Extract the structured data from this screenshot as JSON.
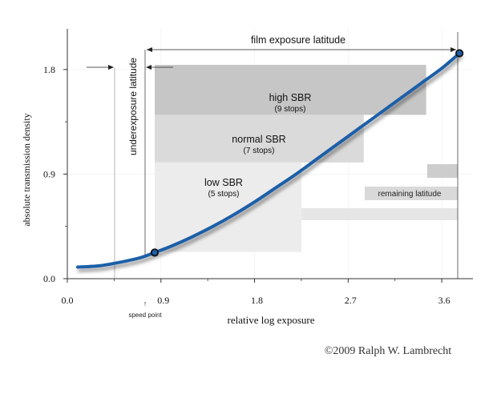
{
  "chart_data": {
    "type": "line",
    "xlabel": "relative log exposure",
    "ylabel": "absolute transmission density",
    "xlim": [
      0.0,
      3.9
    ],
    "ylim": [
      0.0,
      2.15
    ],
    "x_ticks": [
      "0.0",
      "0.9",
      "1.8",
      "2.7",
      "3.6"
    ],
    "x_tick_values": [
      0.0,
      0.9,
      1.8,
      2.7,
      3.6
    ],
    "y_ticks": [
      "0.0",
      "0.9",
      "1.8"
    ],
    "y_tick_values": [
      0.0,
      0.9,
      1.8
    ],
    "grid": true,
    "series": [
      {
        "color": "#1f5ea8",
        "x": [
          0.1,
          0.3,
          0.5,
          0.7,
          0.84,
          1.0,
          1.2,
          1.4,
          1.6,
          1.8,
          2.0,
          2.2,
          2.4,
          2.6,
          2.8,
          3.0,
          3.2,
          3.4,
          3.6,
          3.77
        ],
        "y": [
          0.1,
          0.11,
          0.14,
          0.18,
          0.225,
          0.28,
          0.36,
          0.45,
          0.55,
          0.66,
          0.78,
          0.9,
          1.03,
          1.16,
          1.29,
          1.42,
          1.55,
          1.68,
          1.81,
          1.94
        ]
      }
    ],
    "marked_points": [
      {
        "x": 0.84,
        "y": 0.225
      },
      {
        "x": 3.77,
        "y": 1.94
      }
    ],
    "sbr_bands": [
      {
        "label": "high SBR",
        "sublabel": "(9 stops)",
        "x0": 0.84,
        "x1": 3.45,
        "y0": 1.41,
        "y1": 1.84,
        "color": "#c6c6c6"
      },
      {
        "label": "normal SBR",
        "sublabel": "(7 stops)",
        "x0": 0.84,
        "x1": 2.85,
        "y0": 1.0,
        "y1": 1.41,
        "color": "#dadada"
      },
      {
        "label": "low SBR",
        "sublabel": "(5 stops)",
        "x0": 0.84,
        "x1": 2.25,
        "y0": 0.23,
        "y1": 1.0,
        "color": "#ececec"
      }
    ],
    "annotations": {
      "film_latitude": "film exposure latitude",
      "underexposure": "underexposure latitude",
      "remaining": "remaining latitude",
      "speed_point": "speed point"
    },
    "copyright": "©2009  Ralph W. Lambrecht"
  },
  "colors": {
    "curve": "#1f5ea8",
    "band_dark": "#c6c6c6",
    "band_mid": "#dadada",
    "band_light": "#ececec",
    "axis": "#333333"
  }
}
